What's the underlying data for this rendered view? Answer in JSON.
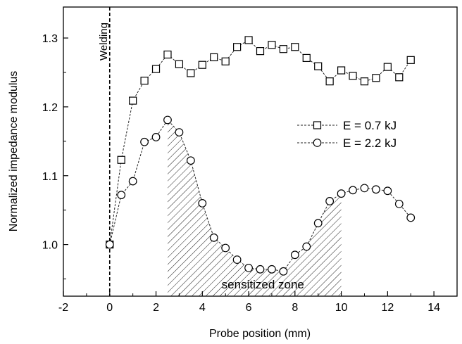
{
  "chart_data": {
    "type": "line",
    "xlabel": "Probe position (mm)",
    "ylabel": "Normalized impedance modulus",
    "xlim": [
      -2,
      15
    ],
    "ylim": [
      0.925,
      1.345
    ],
    "x_ticks": [
      -2,
      0,
      2,
      4,
      6,
      8,
      10,
      12,
      14
    ],
    "x_tick_labels": [
      "-2",
      "0",
      "2",
      "4",
      "6",
      "8",
      "10",
      "12",
      "14"
    ],
    "y_ticks": [
      1.0,
      1.1,
      1.2,
      1.3
    ],
    "y_tick_labels": [
      "1.0",
      "1.1",
      "1.2",
      "1.3"
    ],
    "grid": false,
    "legend_position": "right",
    "series": [
      {
        "name": "E = 0.7 kJ",
        "marker": "square",
        "x": [
          0,
          0.5,
          1,
          1.5,
          2,
          2.5,
          3,
          3.5,
          4,
          4.5,
          5,
          5.5,
          6,
          6.5,
          7,
          7.5,
          8,
          8.5,
          9,
          9.5,
          10,
          10.5,
          11,
          11.5,
          12,
          12.5,
          13
        ],
        "values": [
          1.0,
          1.123,
          1.209,
          1.238,
          1.255,
          1.276,
          1.262,
          1.249,
          1.261,
          1.272,
          1.266,
          1.287,
          1.297,
          1.281,
          1.29,
          1.284,
          1.287,
          1.271,
          1.259,
          1.237,
          1.253,
          1.245,
          1.237,
          1.242,
          1.258,
          1.243,
          1.268
        ]
      },
      {
        "name": "E = 2.2 kJ",
        "marker": "circle",
        "x": [
          0,
          0.5,
          1,
          1.5,
          2,
          2.5,
          3,
          3.5,
          4,
          4.5,
          5,
          5.5,
          6,
          6.5,
          7,
          7.5,
          8,
          8.5,
          9,
          9.5,
          10,
          10.5,
          11,
          11.5,
          12,
          12.5,
          13
        ],
        "values": [
          1.0,
          1.072,
          1.092,
          1.149,
          1.156,
          1.181,
          1.163,
          1.122,
          1.06,
          1.01,
          0.995,
          0.978,
          0.966,
          0.964,
          0.964,
          0.961,
          0.985,
          0.997,
          1.031,
          1.063,
          1.074,
          1.079,
          1.082,
          1.08,
          1.078,
          1.059,
          1.039
        ]
      }
    ],
    "annotations": {
      "welding_line_x": 0,
      "welding_label": "Welding",
      "zone_label": "sensitized zone",
      "zone_range": [
        2.5,
        10
      ]
    }
  }
}
